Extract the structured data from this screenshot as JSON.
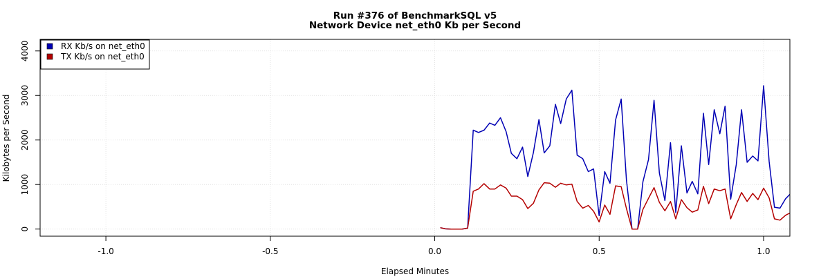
{
  "chart_data": {
    "type": "line",
    "title": "Run #376 of BenchmarkSQL v5",
    "subtitle": "Network Device net_eth0 Kb per Second",
    "xlabel": "Elapsed Minutes",
    "ylabel": "Kilobytes per Second",
    "xlim": [
      -1.2,
      1.08
    ],
    "ylim": [
      -160,
      4260
    ],
    "x_ticks": [
      -1.0,
      -0.5,
      0.0,
      0.5,
      1.0
    ],
    "x_tick_labels": [
      "-1.0",
      "-0.5",
      "0.0",
      "0.5",
      "1.0"
    ],
    "y_ticks": [
      0,
      1000,
      2000,
      3000,
      4000
    ],
    "y_tick_labels": [
      "0",
      "1000",
      "2000",
      "3000",
      "4000"
    ],
    "grid": true,
    "legend_position": "top-left",
    "series": [
      {
        "name": "RX Kb/s on net_eth0",
        "color": "#0000b4",
        "x": [
          0.017,
          0.033,
          0.05,
          0.067,
          0.083,
          0.1,
          0.117,
          0.133,
          0.15,
          0.167,
          0.183,
          0.2,
          0.217,
          0.233,
          0.25,
          0.267,
          0.283,
          0.3,
          0.317,
          0.333,
          0.35,
          0.367,
          0.383,
          0.4,
          0.417,
          0.433,
          0.45,
          0.467,
          0.483,
          0.5,
          0.517,
          0.533,
          0.55,
          0.567,
          0.583,
          0.6,
          0.617,
          0.633,
          0.65,
          0.667,
          0.683,
          0.7,
          0.717,
          0.733,
          0.75,
          0.767,
          0.783,
          0.8,
          0.817,
          0.833,
          0.85,
          0.867,
          0.883,
          0.9,
          0.917,
          0.933,
          0.95,
          0.967,
          0.983,
          1.0,
          1.017,
          1.033,
          1.05,
          1.067,
          1.08
        ],
        "values": [
          30,
          5,
          0,
          0,
          0,
          20,
          2220,
          2170,
          2220,
          2380,
          2330,
          2500,
          2190,
          1700,
          1580,
          1840,
          1180,
          1720,
          2460,
          1710,
          1870,
          2800,
          2370,
          2920,
          3120,
          1660,
          1580,
          1290,
          1350,
          300,
          1290,
          1030,
          2450,
          2920,
          1100,
          0,
          0,
          1060,
          1560,
          2890,
          1260,
          640,
          1940,
          370,
          1870,
          810,
          1070,
          790,
          2600,
          1450,
          2680,
          2140,
          2760,
          670,
          1450,
          2680,
          1500,
          1640,
          1530,
          3220,
          1520,
          490,
          470,
          680,
          780
        ]
      },
      {
        "name": "TX Kb/s on net_eth0",
        "color": "#b40000",
        "x": [
          0.017,
          0.033,
          0.05,
          0.067,
          0.083,
          0.1,
          0.117,
          0.133,
          0.15,
          0.167,
          0.183,
          0.2,
          0.217,
          0.233,
          0.25,
          0.267,
          0.283,
          0.3,
          0.317,
          0.333,
          0.35,
          0.367,
          0.383,
          0.4,
          0.417,
          0.433,
          0.45,
          0.467,
          0.483,
          0.5,
          0.517,
          0.533,
          0.55,
          0.567,
          0.583,
          0.6,
          0.617,
          0.633,
          0.65,
          0.667,
          0.683,
          0.7,
          0.717,
          0.733,
          0.75,
          0.767,
          0.783,
          0.8,
          0.817,
          0.833,
          0.85,
          0.867,
          0.883,
          0.9,
          0.917,
          0.933,
          0.95,
          0.967,
          0.983,
          1.0,
          1.017,
          1.033,
          1.05,
          1.067,
          1.08
        ],
        "values": [
          30,
          5,
          0,
          0,
          0,
          20,
          850,
          900,
          1020,
          900,
          900,
          990,
          920,
          740,
          740,
          660,
          460,
          580,
          880,
          1040,
          1030,
          940,
          1030,
          990,
          1010,
          620,
          470,
          530,
          400,
          160,
          540,
          330,
          970,
          950,
          460,
          0,
          0,
          440,
          690,
          930,
          600,
          410,
          620,
          230,
          660,
          480,
          380,
          430,
          960,
          570,
          900,
          860,
          900,
          230,
          550,
          820,
          620,
          800,
          660,
          920,
          700,
          230,
          200,
          310,
          360
        ]
      }
    ]
  }
}
